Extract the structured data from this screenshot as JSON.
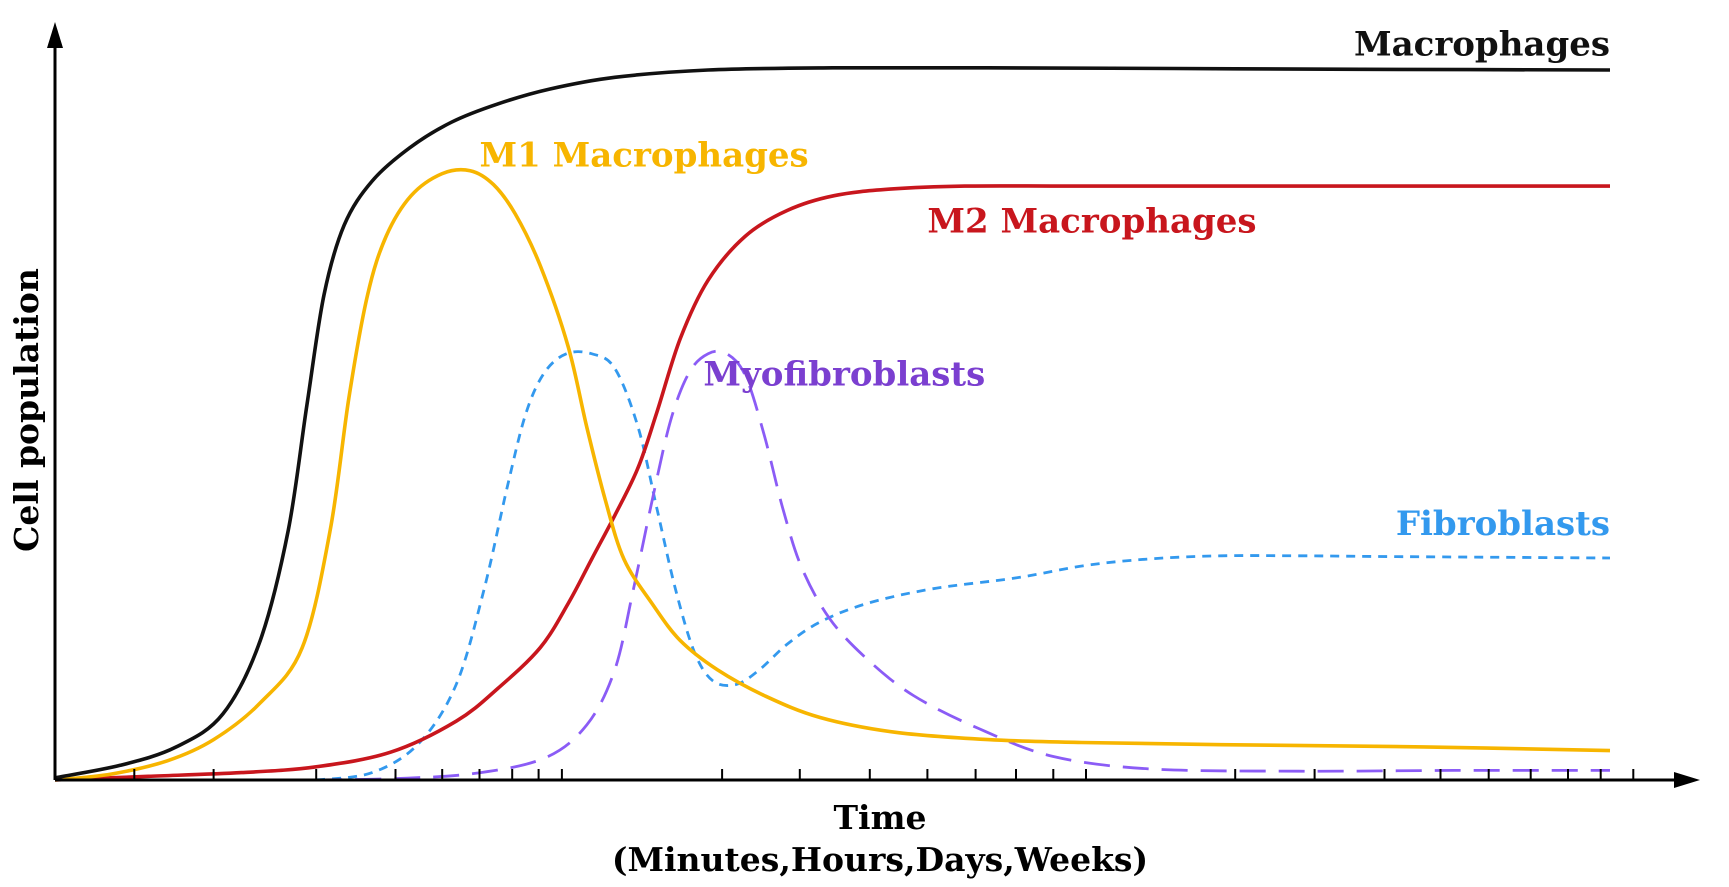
{
  "chart_data": {
    "type": "line",
    "title": "",
    "xlabel": "Time",
    "xlabel_sub": "(Minutes,Hours,Days,Weeks)",
    "ylabel": "Cell population",
    "xlim": [
      0,
      100
    ],
    "ylim": [
      0,
      100
    ],
    "grid": false,
    "x_ticks": [
      0,
      5.1,
      10.2,
      16.8,
      21.9,
      24.9,
      27.3,
      29.4,
      31.1,
      32.6,
      42.9,
      47.9,
      52.4,
      56.1,
      59.2,
      61.8,
      64.2,
      66.3,
      75.9,
      81.0,
      85.5,
      89.1,
      92.2,
      94.9,
      97.3,
      99.4,
      101.5
    ],
    "series": [
      {
        "name": "Macrophages",
        "color": "#111111",
        "dash": "solid",
        "points": [
          [
            0,
            0.3
          ],
          [
            4.2,
            2
          ],
          [
            7.8,
            4.5
          ],
          [
            10.8,
            9
          ],
          [
            13.2,
            19
          ],
          [
            15,
            34
          ],
          [
            16.2,
            51
          ],
          [
            17.3,
            66
          ],
          [
            18.6,
            75.5
          ],
          [
            20.4,
            81.5
          ],
          [
            22.8,
            86
          ],
          [
            25.5,
            89.5
          ],
          [
            28.5,
            92
          ],
          [
            31.8,
            94
          ],
          [
            36,
            95.6
          ],
          [
            42,
            96.6
          ],
          [
            50,
            96.9
          ],
          [
            60,
            96.9
          ],
          [
            72,
            96.8
          ],
          [
            84,
            96.7
          ],
          [
            100,
            96.6
          ]
        ]
      },
      {
        "name": "M1 Macrophages",
        "color": "#F7B500",
        "dash": "solid",
        "points": [
          [
            0,
            0
          ],
          [
            3.6,
            0.8
          ],
          [
            7.2,
            2.6
          ],
          [
            10.2,
            5.5
          ],
          [
            13.2,
            10.5
          ],
          [
            15.9,
            18
          ],
          [
            17.7,
            34
          ],
          [
            18.9,
            52
          ],
          [
            20.1,
            66
          ],
          [
            21.3,
            74
          ],
          [
            22.9,
            79.5
          ],
          [
            24.9,
            82.5
          ],
          [
            26.7,
            82.9
          ],
          [
            28.2,
            81
          ],
          [
            29.6,
            77
          ],
          [
            31.2,
            70
          ],
          [
            33,
            59
          ],
          [
            34.2,
            48
          ],
          [
            35.4,
            38
          ],
          [
            36.6,
            30
          ],
          [
            38.4,
            24
          ],
          [
            40.2,
            19
          ],
          [
            42.6,
            15
          ],
          [
            45.6,
            11.5
          ],
          [
            49.2,
            8.5
          ],
          [
            54,
            6.5
          ],
          [
            60,
            5.5
          ],
          [
            66,
            5.1
          ],
          [
            75,
            4.8
          ],
          [
            88,
            4.5
          ],
          [
            100,
            4
          ]
        ]
      },
      {
        "name": "M2 Macrophages",
        "color": "#C8161D",
        "dash": "solid",
        "points": [
          [
            0,
            0
          ],
          [
            6,
            0.5
          ],
          [
            12,
            1
          ],
          [
            16.8,
            1.8
          ],
          [
            21.6,
            3.8
          ],
          [
            25.8,
            8
          ],
          [
            28.5,
            12.5
          ],
          [
            31.2,
            18
          ],
          [
            33,
            24
          ],
          [
            34.5,
            30
          ],
          [
            36,
            36
          ],
          [
            37.5,
            42.5
          ],
          [
            38.7,
            50
          ],
          [
            40.2,
            60
          ],
          [
            42,
            68
          ],
          [
            44.4,
            74
          ],
          [
            47.1,
            77.5
          ],
          [
            50.1,
            79.5
          ],
          [
            53.7,
            80.4
          ],
          [
            58.5,
            80.8
          ],
          [
            66,
            80.8
          ],
          [
            80,
            80.8
          ],
          [
            100,
            80.8
          ]
        ]
      },
      {
        "name": "Fibroblasts",
        "color": "#3399EE",
        "dash": "9,7",
        "points": [
          [
            16.8,
            0
          ],
          [
            20.4,
            1
          ],
          [
            23.4,
            5
          ],
          [
            25.8,
            13
          ],
          [
            27.6,
            26
          ],
          [
            29.1,
            40
          ],
          [
            30.3,
            50
          ],
          [
            31.5,
            55.5
          ],
          [
            32.9,
            58
          ],
          [
            34.5,
            58
          ],
          [
            36,
            56
          ],
          [
            37.5,
            48
          ],
          [
            38.7,
            37
          ],
          [
            39.9,
            26
          ],
          [
            41.1,
            17.5
          ],
          [
            42.3,
            13.5
          ],
          [
            43.8,
            13
          ],
          [
            45.3,
            15
          ],
          [
            47.1,
            18.5
          ],
          [
            49.2,
            21.5
          ],
          [
            52.2,
            24
          ],
          [
            56.4,
            26
          ],
          [
            61.8,
            27.5
          ],
          [
            66.3,
            29.2
          ],
          [
            70.5,
            30.1
          ],
          [
            75,
            30.5
          ],
          [
            80,
            30.5
          ],
          [
            86,
            30.4
          ],
          [
            100,
            30.2
          ]
        ]
      },
      {
        "name": "Myofibroblasts",
        "color": "#8B5CF6",
        "dash": "26,13",
        "points": [
          [
            16.8,
            0
          ],
          [
            22,
            0.2
          ],
          [
            27,
            0.9
          ],
          [
            31.5,
            3
          ],
          [
            34.2,
            7.5
          ],
          [
            36,
            15
          ],
          [
            37.2,
            26
          ],
          [
            38.4,
            38
          ],
          [
            39.6,
            49
          ],
          [
            40.8,
            55.5
          ],
          [
            42,
            58
          ],
          [
            43.2,
            58
          ],
          [
            44.4,
            55
          ],
          [
            45.6,
            47
          ],
          [
            46.8,
            37
          ],
          [
            48,
            29
          ],
          [
            49.8,
            22
          ],
          [
            52.2,
            16.5
          ],
          [
            55.2,
            11.5
          ],
          [
            59.4,
            7
          ],
          [
            64.2,
            3.2
          ],
          [
            70.5,
            1.5
          ],
          [
            80,
            1.2
          ],
          [
            90,
            1.3
          ],
          [
            100,
            1.3
          ]
        ]
      }
    ],
    "annotations": [
      {
        "name": "series-label-macrophages",
        "text": "Macrophages",
        "x": 100,
        "y": 98.6,
        "anchor": "end",
        "color": "#111111"
      },
      {
        "name": "series-label-m1-macrophages",
        "text": "M1 Macrophages",
        "x": 27.3,
        "y": 83.5,
        "anchor": "start",
        "color": "#F7B500"
      },
      {
        "name": "series-label-m2-macrophages",
        "text": "M2 Macrophages",
        "x": 56.1,
        "y": 74.5,
        "anchor": "start",
        "color": "#C8161D"
      },
      {
        "name": "series-label-myofibroblasts",
        "text": "Myofibroblasts",
        "x": 41.7,
        "y": 53.7,
        "anchor": "start",
        "color": "#7B3FD0"
      },
      {
        "name": "series-label-fibroblasts",
        "text": "Fibroblasts",
        "x": 100,
        "y": 33.3,
        "anchor": "end",
        "color": "#3399EE"
      }
    ]
  }
}
